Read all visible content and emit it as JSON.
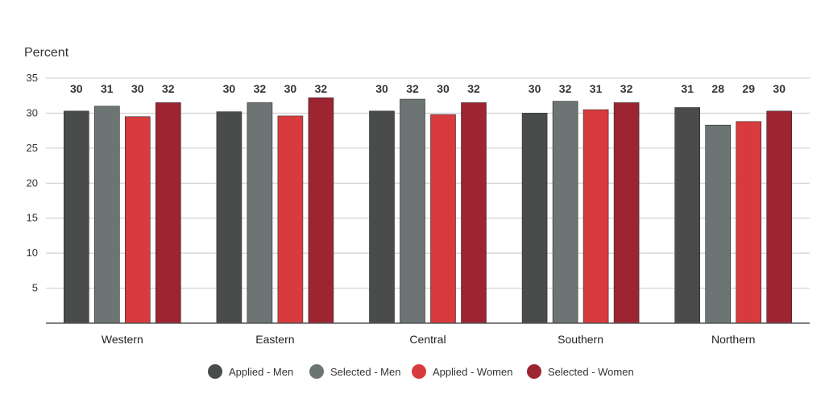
{
  "chart_data": {
    "type": "bar",
    "ylabel": "Percent",
    "xlabel": "",
    "ylim": [
      0,
      35
    ],
    "yticks": [
      5,
      10,
      15,
      20,
      25,
      30,
      35
    ],
    "grid": true,
    "legend_position": "bottom-center",
    "categories": [
      "Western",
      "Eastern",
      "Central",
      "Southern",
      "Northern"
    ],
    "series": [
      {
        "name": "Applied - Men",
        "color": "#4a4b4b",
        "values": [
          30.3,
          30.2,
          30.3,
          30.0,
          30.8
        ],
        "labels": [
          "30",
          "30",
          "30",
          "30",
          "31"
        ]
      },
      {
        "name": "Selected - Men",
        "color": "#6d7574",
        "values": [
          31.0,
          31.5,
          32.0,
          31.7,
          28.3
        ],
        "labels": [
          "31",
          "32",
          "32",
          "32",
          "28"
        ]
      },
      {
        "name": "Applied - Women",
        "color": "#d83b3d",
        "values": [
          29.5,
          29.6,
          29.8,
          30.5,
          28.8
        ],
        "labels": [
          "30",
          "30",
          "30",
          "31",
          "29"
        ]
      },
      {
        "name": "Selected - Women",
        "color": "#9c2531",
        "values": [
          31.5,
          32.2,
          31.5,
          31.5,
          30.3
        ],
        "labels": [
          "32",
          "32",
          "32",
          "32",
          "30"
        ]
      }
    ]
  }
}
